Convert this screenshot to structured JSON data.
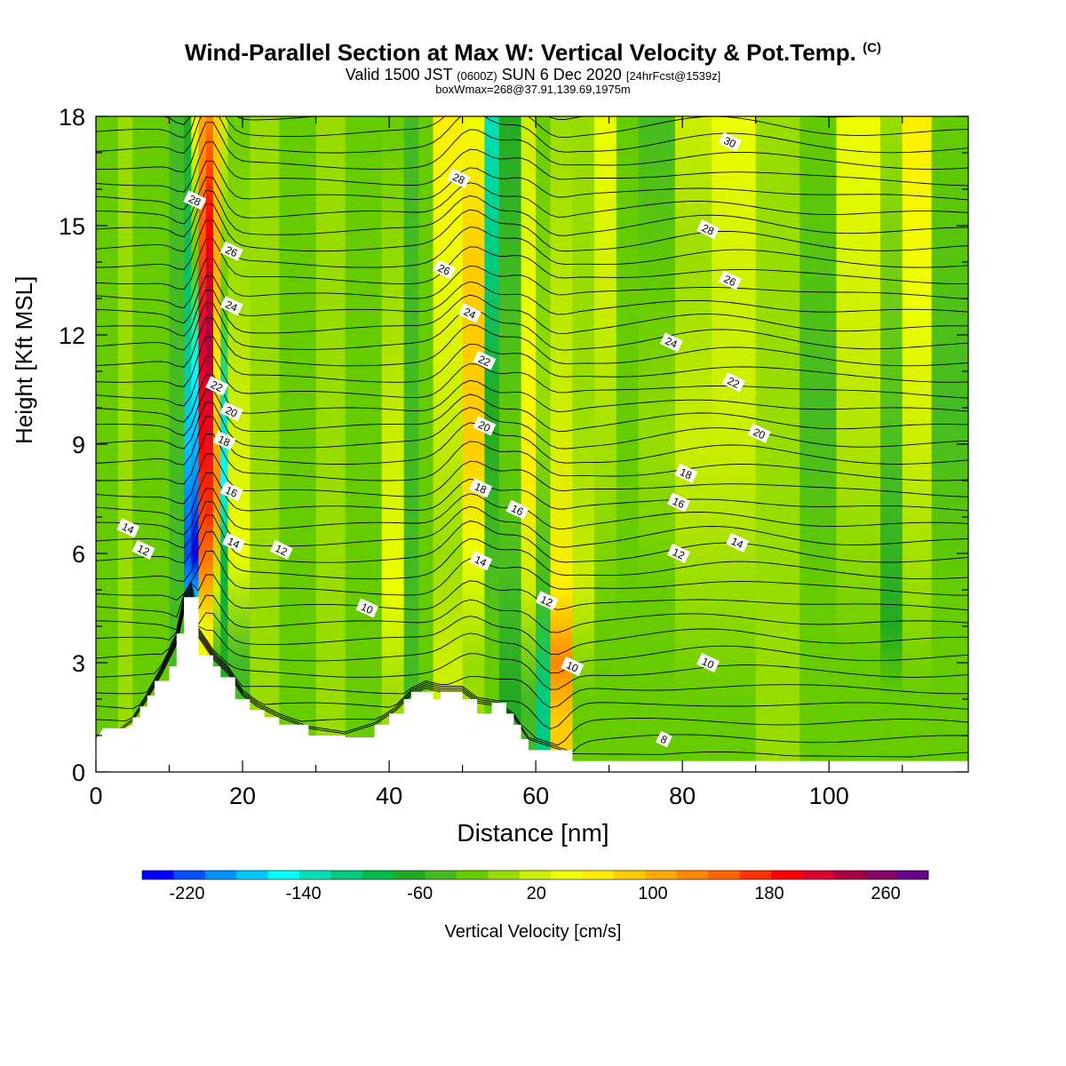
{
  "title": {
    "main": "Wind-Parallel Section at Max W: Vertical Velocity & Pot.Temp.",
    "copyright": "(C)",
    "valid_prefix": "Valid 1500 JST",
    "valid_zulu": "(0600Z)",
    "valid_date": "SUN 6 Dec 2020",
    "forecast": "[24hrFcst@1539z]",
    "box_info": "boxWmax=268@37.91,139.69,1975m"
  },
  "colors": {
    "colorbar": [
      "#0000ff",
      "#0050ff",
      "#0090ff",
      "#00c8ff",
      "#00ffff",
      "#00e0b8",
      "#00cc80",
      "#00bb48",
      "#22aa22",
      "#44bb22",
      "#66cc00",
      "#99dd00",
      "#ccee00",
      "#eeff00",
      "#ffee00",
      "#ffcc00",
      "#ffaa00",
      "#ff8800",
      "#ff6600",
      "#ff3300",
      "#ff0000",
      "#dd0033",
      "#aa0044",
      "#880066",
      "#660088"
    ],
    "terrain": "#ffffff",
    "contour": "#000000"
  },
  "chart_data": {
    "type": "heatmap",
    "xlabel": "Distance [nm]",
    "ylabel": "Height [Kft MSL]",
    "xlim": [
      0,
      119
    ],
    "ylim": [
      0,
      18
    ],
    "xticks": [
      0,
      20,
      40,
      60,
      80,
      100
    ],
    "yticks": [
      0,
      3,
      6,
      9,
      12,
      15,
      18
    ],
    "colorbar": {
      "label": "Vertical Velocity [cm/s]",
      "ticks": [
        -220,
        -140,
        -60,
        20,
        100,
        180,
        260
      ],
      "range": [
        -240,
        300
      ],
      "step": 20
    },
    "theta_contour_labels": [
      {
        "text": "28",
        "x": 13.5,
        "y": 15.7
      },
      {
        "text": "26",
        "x": 18.5,
        "y": 14.3
      },
      {
        "text": "24",
        "x": 18.5,
        "y": 12.8
      },
      {
        "text": "22",
        "x": 16.5,
        "y": 10.6
      },
      {
        "text": "20",
        "x": 18.5,
        "y": 9.9
      },
      {
        "text": "18",
        "x": 17.5,
        "y": 9.1
      },
      {
        "text": "16",
        "x": 18.5,
        "y": 7.7
      },
      {
        "text": "14",
        "x": 18.8,
        "y": 6.3
      },
      {
        "text": "14",
        "x": 4.4,
        "y": 6.7
      },
      {
        "text": "12",
        "x": 6.5,
        "y": 6.1
      },
      {
        "text": "12",
        "x": 25.3,
        "y": 6.1
      },
      {
        "text": "10",
        "x": 37.0,
        "y": 4.5
      },
      {
        "text": "28",
        "x": 49.5,
        "y": 16.3
      },
      {
        "text": "26",
        "x": 47.5,
        "y": 13.8
      },
      {
        "text": "24",
        "x": 51.0,
        "y": 12.6
      },
      {
        "text": "22",
        "x": 53.0,
        "y": 11.3
      },
      {
        "text": "20",
        "x": 53.0,
        "y": 9.5
      },
      {
        "text": "18",
        "x": 52.5,
        "y": 7.8
      },
      {
        "text": "16",
        "x": 57.5,
        "y": 7.2
      },
      {
        "text": "14",
        "x": 52.5,
        "y": 5.8
      },
      {
        "text": "12",
        "x": 61.5,
        "y": 4.7
      },
      {
        "text": "10",
        "x": 65.0,
        "y": 2.9
      },
      {
        "text": "30",
        "x": 86.5,
        "y": 17.3
      },
      {
        "text": "28",
        "x": 83.5,
        "y": 14.9
      },
      {
        "text": "26",
        "x": 86.5,
        "y": 13.5
      },
      {
        "text": "24",
        "x": 78.5,
        "y": 11.8
      },
      {
        "text": "22",
        "x": 87.0,
        "y": 10.7
      },
      {
        "text": "20",
        "x": 90.5,
        "y": 9.3
      },
      {
        "text": "18",
        "x": 80.5,
        "y": 8.2
      },
      {
        "text": "16",
        "x": 79.5,
        "y": 7.4
      },
      {
        "text": "14",
        "x": 87.5,
        "y": 6.3
      },
      {
        "text": "12",
        "x": 79.5,
        "y": 6.0
      },
      {
        "text": "10",
        "x": 83.5,
        "y": 3.0
      },
      {
        "text": "8",
        "x": 77.5,
        "y": 0.9
      }
    ],
    "notable_features": {
      "max_updraft_x_nm": 16.5,
      "max_downdraft_x_nm": 13.5,
      "terrain_peak_x_nm": 13.5,
      "terrain_peak_kft": 4.8
    }
  }
}
